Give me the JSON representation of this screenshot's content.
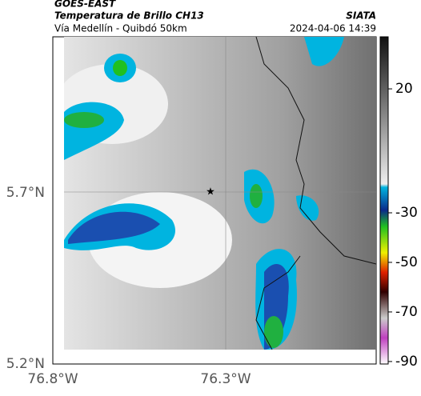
{
  "header": {
    "title": "GOES-EAST",
    "subtitle": "Temperatura de Brillo CH13",
    "brand": "SIATA",
    "location": "Vía Medellín - Quibdó 50km",
    "datetime": "2024-04-06 14:39"
  },
  "map": {
    "lat_labels": [
      "5.7°N",
      "5.2°N"
    ],
    "lon_labels": [
      "76.8°W",
      "76.3°W"
    ]
  },
  "colorbar": {
    "lim": [
      41,
      -91
    ],
    "ticks": [
      20,
      -30,
      -50,
      -70,
      -90
    ]
  }
}
